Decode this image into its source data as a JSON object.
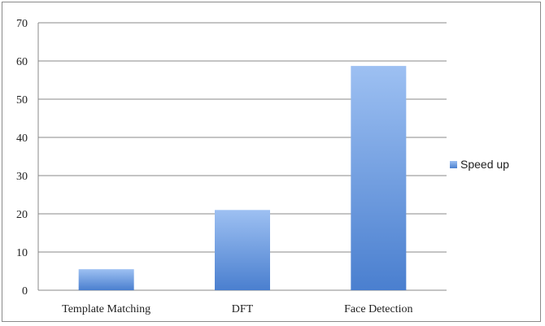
{
  "chart_data": {
    "type": "bar",
    "categories": [
      "Template Matching",
      "DFT",
      "Face Detection"
    ],
    "series": [
      {
        "name": "Speed up",
        "values": [
          5.5,
          21,
          58.7
        ]
      }
    ],
    "title": "",
    "xlabel": "",
    "ylabel": "",
    "ylim": [
      0,
      70
    ],
    "yticks": [
      0,
      10,
      20,
      30,
      40,
      50,
      60,
      70
    ],
    "grid": true,
    "legend": "right",
    "colors": {
      "bar_top": "#9dc0f2",
      "bar_bottom": "#4a7fcf",
      "grid": "#8a8a8a"
    }
  }
}
